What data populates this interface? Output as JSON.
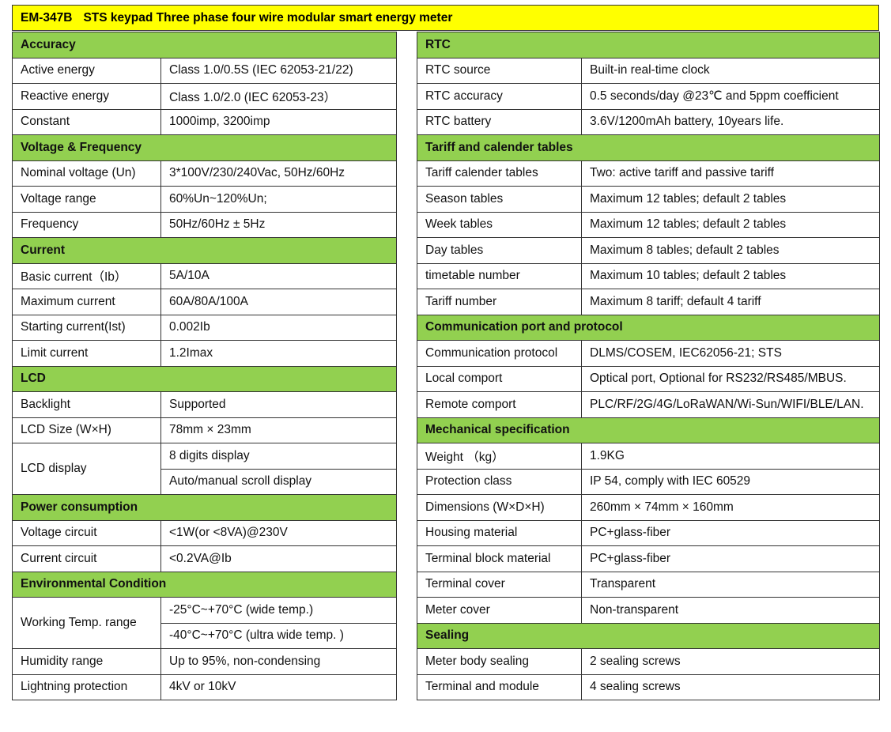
{
  "title": {
    "code": "EM-347B",
    "text": "STS keypad Three phase four wire modular smart energy meter"
  },
  "colors": {
    "title_bg": "#ffff00",
    "section_bg": "#92d050"
  },
  "left": [
    {
      "section": "Accuracy",
      "rows": [
        [
          "Active energy",
          [
            "Class 1.0/0.5S (IEC 62053-21/22)"
          ]
        ],
        [
          "Reactive energy",
          [
            "Class 1.0/2.0 (IEC 62053-23）"
          ]
        ],
        [
          "Constant",
          [
            "1000imp, 3200imp"
          ]
        ]
      ]
    },
    {
      "section": "Voltage & Frequency",
      "rows": [
        [
          "Nominal voltage (Un)",
          [
            "3*100V/230/240Vac, 50Hz/60Hz"
          ]
        ],
        [
          "Voltage range",
          [
            "60%Un~120%Un;"
          ]
        ],
        [
          "Frequency",
          [
            "50Hz/60Hz ± 5Hz"
          ]
        ]
      ]
    },
    {
      "section": "Current",
      "rows": [
        [
          "Basic current（Ib）",
          [
            "5A/10A"
          ]
        ],
        [
          "Maximum current",
          [
            "60A/80A/100A"
          ]
        ],
        [
          "Starting current(Ist)",
          [
            "0.002Ib"
          ]
        ],
        [
          "Limit current",
          [
            "1.2Imax"
          ]
        ]
      ]
    },
    {
      "section": "LCD",
      "rows": [
        [
          "Backlight",
          [
            "Supported"
          ]
        ],
        [
          "LCD Size (W×H)",
          [
            "78mm × 23mm"
          ]
        ],
        [
          "LCD display",
          [
            "8 digits display",
            "Auto/manual scroll display"
          ]
        ]
      ]
    },
    {
      "section": "Power consumption",
      "rows": [
        [
          "Voltage circuit",
          [
            "<1W(or <8VA)@230V"
          ]
        ],
        [
          "Current circuit",
          [
            "<0.2VA@Ib"
          ]
        ]
      ]
    },
    {
      "section": "Environmental Condition",
      "rows": [
        [
          "Working Temp. range",
          [
            "-25°C~+70°C (wide temp.)",
            "-40°C~+70°C (ultra wide temp. )"
          ]
        ],
        [
          "Humidity range",
          [
            "Up to 95%, non-condensing"
          ]
        ],
        [
          "Lightning protection",
          [
            "4kV or 10kV"
          ]
        ]
      ]
    }
  ],
  "right": [
    {
      "section": "RTC",
      "rows": [
        [
          "RTC source",
          [
            "Built-in real-time clock"
          ]
        ],
        [
          "RTC accuracy",
          [
            "0.5 seconds/day @23℃  and 5ppm coefficient"
          ]
        ],
        [
          "RTC battery",
          [
            "3.6V/1200mAh battery, 10years life."
          ]
        ]
      ]
    },
    {
      "section": "Tariff and calender tables",
      "rows": [
        [
          "Tariff calender tables",
          [
            "Two: active tariff and passive tariff"
          ]
        ],
        [
          "Season tables",
          [
            "Maximum 12 tables; default 2 tables"
          ]
        ],
        [
          "Week tables",
          [
            "Maximum 12 tables; default 2 tables"
          ]
        ],
        [
          "Day tables",
          [
            "Maximum 8 tables; default 2 tables"
          ]
        ],
        [
          "timetable number",
          [
            "Maximum 10 tables; default 2 tables"
          ]
        ],
        [
          "Tariff number",
          [
            "Maximum 8 tariff; default 4 tariff"
          ]
        ]
      ]
    },
    {
      "section": "Communication port and protocol",
      "rows": [
        [
          "Communication protocol",
          [
            "DLMS/COSEM, IEC62056-21; STS"
          ]
        ],
        [
          "Local comport",
          [
            "Optical port, Optional for RS232/RS485/MBUS."
          ]
        ],
        [
          "Remote comport",
          [
            "PLC/RF/2G/4G/LoRaWAN/Wi-Sun/WIFI/BLE/LAN."
          ]
        ]
      ]
    },
    {
      "section": "Mechanical specification",
      "rows": [
        [
          "Weight （kg）",
          [
            "1.9KG"
          ]
        ],
        [
          "Protection class",
          [
            "IP 54, comply with IEC 60529"
          ]
        ],
        [
          "Dimensions (W×D×H)",
          [
            "260mm × 74mm × 160mm"
          ]
        ],
        [
          "Housing material",
          [
            "PC+glass-fiber"
          ]
        ],
        [
          "Terminal block material",
          [
            "PC+glass-fiber"
          ]
        ],
        [
          "Terminal cover",
          [
            "Transparent"
          ]
        ],
        [
          "Meter cover",
          [
            "Non-transparent"
          ]
        ]
      ]
    },
    {
      "section": "Sealing",
      "rows": [
        [
          "Meter body sealing",
          [
            "2 sealing screws"
          ]
        ],
        [
          "Terminal and module",
          [
            "4 sealing screws"
          ]
        ]
      ]
    }
  ]
}
